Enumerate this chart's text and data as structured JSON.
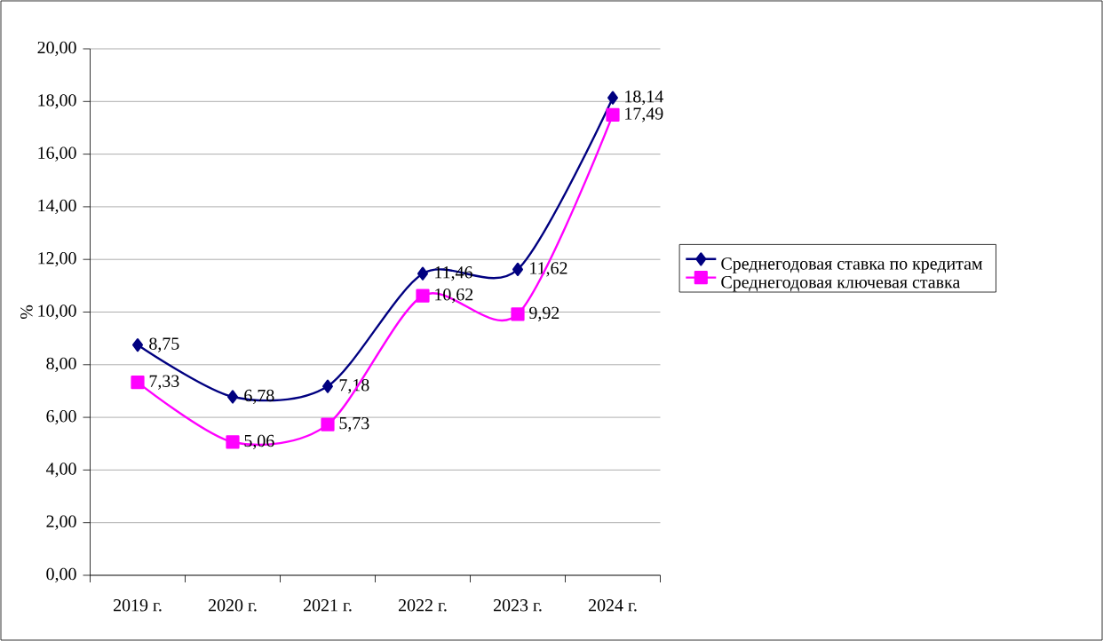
{
  "chart_data": {
    "type": "line",
    "ylabel": "%",
    "categories": [
      "2019 г.",
      "2020 г.",
      "2021 г.",
      "2022 г.",
      "2023 г.",
      "2024 г."
    ],
    "series": [
      {
        "name": "Среднегодовая ставка по кредитам",
        "color": "#000080",
        "marker": "diamond",
        "values": [
          8.75,
          6.78,
          7.18,
          11.46,
          11.62,
          18.14
        ],
        "value_labels": [
          "8,75",
          "6,78",
          "7,18",
          "11,46",
          "11,62",
          "18,14"
        ]
      },
      {
        "name": "Среднегодовая ключевая ставка",
        "color": "#ff00ff",
        "marker": "square",
        "values": [
          7.33,
          5.06,
          5.73,
          10.62,
          9.92,
          17.49
        ],
        "value_labels": [
          "7,33",
          "5,06",
          "5,73",
          "10,62",
          "9,92",
          "17,49"
        ]
      }
    ],
    "ylim": [
      0,
      20
    ],
    "yticks": [
      {
        "value": 0,
        "label": "0,00"
      },
      {
        "value": 2,
        "label": "2,00"
      },
      {
        "value": 4,
        "label": "4,00"
      },
      {
        "value": 6,
        "label": "6,00"
      },
      {
        "value": 8,
        "label": "8,00"
      },
      {
        "value": 10,
        "label": "10,00"
      },
      {
        "value": 12,
        "label": "12,00"
      },
      {
        "value": 14,
        "label": "14,00"
      },
      {
        "value": 16,
        "label": "16,00"
      },
      {
        "value": 18,
        "label": "18,00"
      },
      {
        "value": 20,
        "label": "20,00"
      }
    ],
    "grid": "y",
    "legend": "right"
  }
}
